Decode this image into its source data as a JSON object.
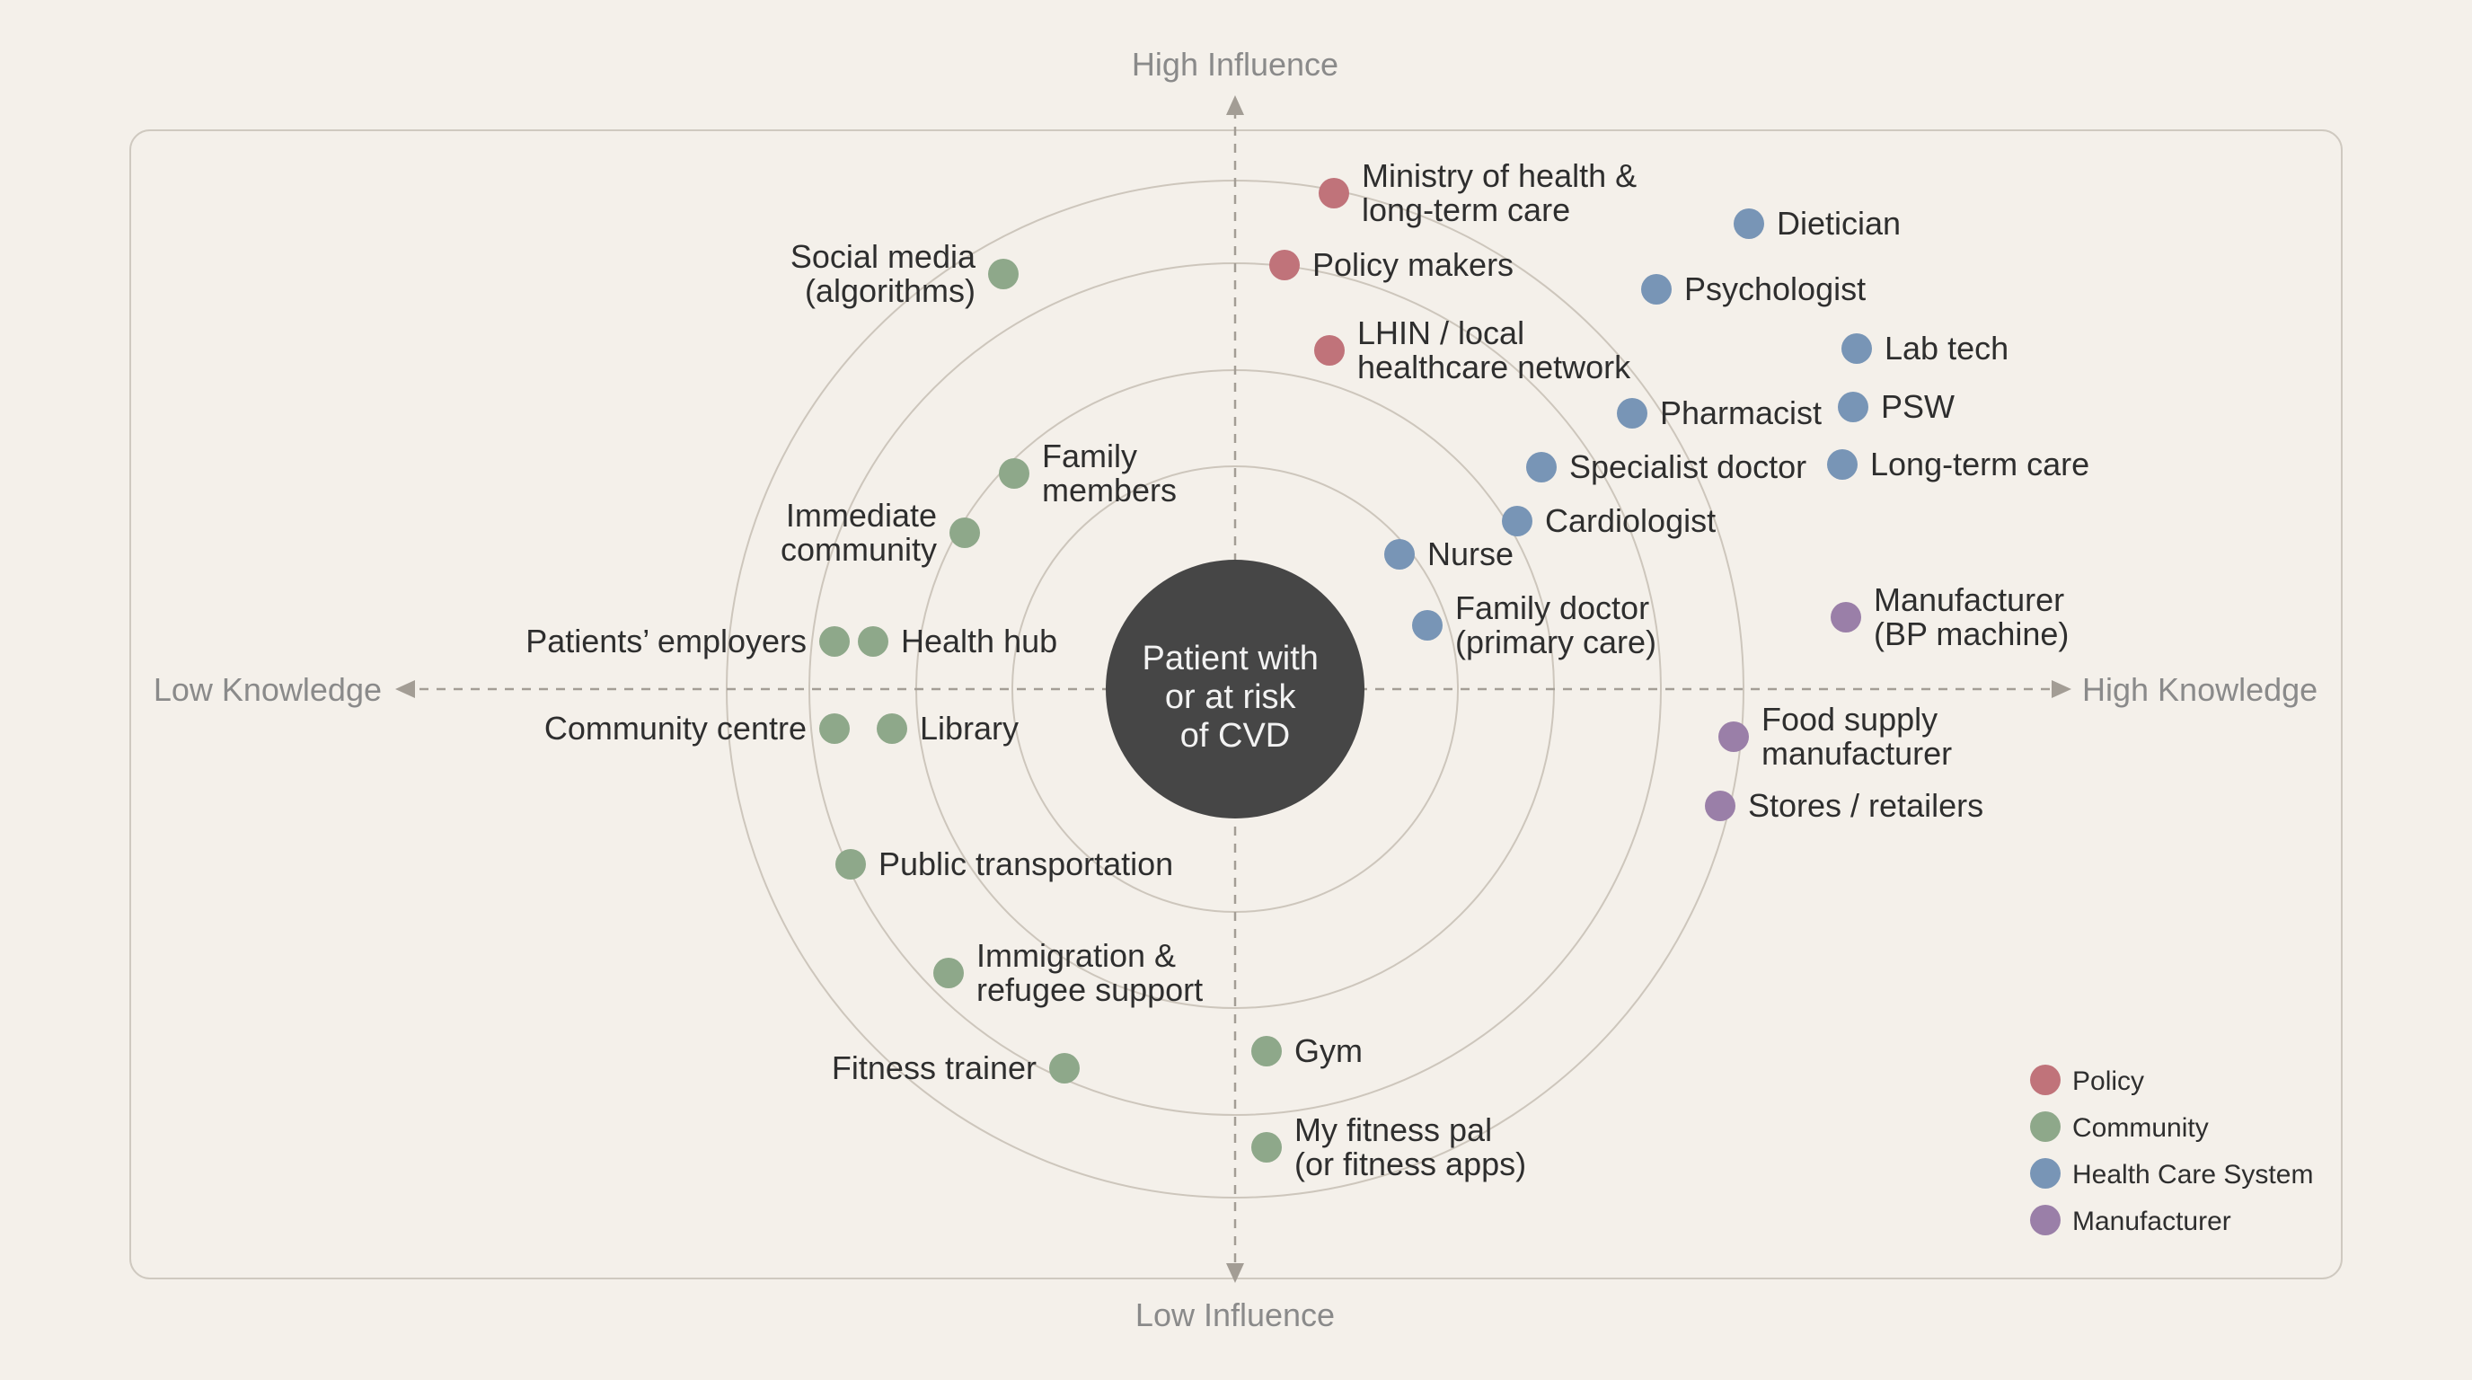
{
  "axes": {
    "top": "High Influence",
    "bottom": "Low Influence",
    "left": "Low Knowledge",
    "right": "High Knowledge"
  },
  "center": {
    "lines": [
      "Patient with",
      "or at risk",
      "of CVD"
    ],
    "color": "#464646"
  },
  "colors": {
    "policy": "#c0737a",
    "community": "#8ea88a",
    "health": "#7895b6",
    "manufacturer": "#9a7fa8"
  },
  "legend": [
    {
      "category": "policy",
      "label": "Policy"
    },
    {
      "category": "community",
      "label": "Community"
    },
    {
      "category": "health",
      "label": "Health Care System"
    },
    {
      "category": "manufacturer",
      "label": "Manufacturer"
    }
  ],
  "stakeholders": [
    {
      "id": "ministry",
      "category": "policy",
      "lines": [
        "Ministry of health &",
        "long-term care"
      ]
    },
    {
      "id": "policy-makers",
      "category": "policy",
      "lines": [
        "Policy makers"
      ]
    },
    {
      "id": "lhin",
      "category": "policy",
      "lines": [
        "LHIN / local",
        "healthcare network"
      ]
    },
    {
      "id": "dietician",
      "category": "health",
      "lines": [
        "Dietician"
      ]
    },
    {
      "id": "psychologist",
      "category": "health",
      "lines": [
        "Psychologist"
      ]
    },
    {
      "id": "lab-tech",
      "category": "health",
      "lines": [
        "Lab tech"
      ]
    },
    {
      "id": "psw",
      "category": "health",
      "lines": [
        "PSW"
      ]
    },
    {
      "id": "pharmacist",
      "category": "health",
      "lines": [
        "Pharmacist"
      ]
    },
    {
      "id": "long-term-care",
      "category": "health",
      "lines": [
        "Long-term care"
      ]
    },
    {
      "id": "specialist-doctor",
      "category": "health",
      "lines": [
        "Specialist doctor"
      ]
    },
    {
      "id": "cardiologist",
      "category": "health",
      "lines": [
        "Cardiologist"
      ]
    },
    {
      "id": "nurse",
      "category": "health",
      "lines": [
        "Nurse"
      ]
    },
    {
      "id": "family-doctor",
      "category": "health",
      "lines": [
        "Family doctor",
        "(primary care)"
      ]
    },
    {
      "id": "manufacturer-bp",
      "category": "manufacturer",
      "lines": [
        "Manufacturer",
        "(BP machine)"
      ]
    },
    {
      "id": "food-supply",
      "category": "manufacturer",
      "lines": [
        "Food supply",
        "manufacturer"
      ]
    },
    {
      "id": "stores",
      "category": "manufacturer",
      "lines": [
        "Stores / retailers"
      ]
    },
    {
      "id": "social-media",
      "category": "community",
      "lines": [
        "Social media",
        "(algorithms)"
      ]
    },
    {
      "id": "family-members",
      "category": "community",
      "lines": [
        "Family",
        "members"
      ]
    },
    {
      "id": "immediate-community",
      "category": "community",
      "lines": [
        "Immediate",
        "community"
      ]
    },
    {
      "id": "patients-employers",
      "category": "community",
      "lines": [
        "Patients’ employers"
      ]
    },
    {
      "id": "health-hub",
      "category": "community",
      "lines": [
        "Health hub"
      ]
    },
    {
      "id": "community-centre",
      "category": "community",
      "lines": [
        "Community centre"
      ]
    },
    {
      "id": "library",
      "category": "community",
      "lines": [
        "Library"
      ]
    },
    {
      "id": "public-transportation",
      "category": "community",
      "lines": [
        "Public transportation"
      ]
    },
    {
      "id": "immigration",
      "category": "community",
      "lines": [
        "Immigration &",
        "refugee support"
      ]
    },
    {
      "id": "fitness-trainer",
      "category": "community",
      "lines": [
        "Fitness trainer"
      ]
    },
    {
      "id": "gym",
      "category": "community",
      "lines": [
        "Gym"
      ]
    },
    {
      "id": "fitness-pal",
      "category": "community",
      "lines": [
        "My fitness pal",
        "(or fitness apps)"
      ]
    }
  ]
}
